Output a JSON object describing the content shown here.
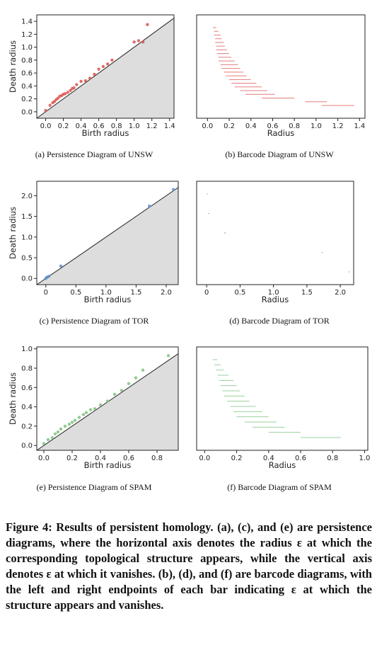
{
  "chart_data": [
    {
      "type": "scatter",
      "xlabel": "Birth radius",
      "ylabel": "Death radius",
      "xticks": [
        "0.0",
        "0.2",
        "0.4",
        "0.6",
        "0.8",
        "1.0",
        "1.2",
        "1.4"
      ],
      "yticks": [
        "0.0",
        "0.2",
        "0.4",
        "0.6",
        "0.8",
        "1.0",
        "1.2",
        "1.4"
      ],
      "xlim": [
        -0.1,
        1.45
      ],
      "ylim": [
        -0.1,
        1.5
      ],
      "color": "#d9534f",
      "caption": "(a)  Persistence Diagram of UNSW",
      "points": [
        [
          0.0,
          0.02
        ],
        [
          0.05,
          0.1
        ],
        [
          0.08,
          0.14
        ],
        [
          0.1,
          0.16
        ],
        [
          0.12,
          0.19
        ],
        [
          0.14,
          0.21
        ],
        [
          0.16,
          0.24
        ],
        [
          0.18,
          0.25
        ],
        [
          0.2,
          0.27
        ],
        [
          0.22,
          0.28
        ],
        [
          0.25,
          0.3
        ],
        [
          0.28,
          0.33
        ],
        [
          0.3,
          0.36
        ],
        [
          0.32,
          0.37
        ],
        [
          0.35,
          0.42
        ],
        [
          0.4,
          0.47
        ],
        [
          0.45,
          0.48
        ],
        [
          0.5,
          0.52
        ],
        [
          0.55,
          0.58
        ],
        [
          0.6,
          0.66
        ],
        [
          0.65,
          0.7
        ],
        [
          0.7,
          0.74
        ],
        [
          0.75,
          0.8
        ],
        [
          1.0,
          1.08
        ],
        [
          1.05,
          1.1
        ],
        [
          1.1,
          1.08
        ],
        [
          1.15,
          1.35
        ]
      ]
    },
    {
      "type": "barcode",
      "xlabel": "Radius",
      "xticks": [
        "0.0",
        "0.2",
        "0.4",
        "0.6",
        "0.8",
        "1.0",
        "1.2",
        "1.4"
      ],
      "xlim": [
        -0.1,
        1.45
      ],
      "color": "#d9534f",
      "caption": "(b)  Barcode Diagram of UNSW",
      "bars": [
        [
          0.05,
          0.08
        ],
        [
          0.06,
          0.1
        ],
        [
          0.06,
          0.12
        ],
        [
          0.07,
          0.13
        ],
        [
          0.07,
          0.15
        ],
        [
          0.08,
          0.16
        ],
        [
          0.08,
          0.18
        ],
        [
          0.09,
          0.2
        ],
        [
          0.1,
          0.22
        ],
        [
          0.1,
          0.25
        ],
        [
          0.12,
          0.28
        ],
        [
          0.13,
          0.3
        ],
        [
          0.15,
          0.33
        ],
        [
          0.17,
          0.36
        ],
        [
          0.2,
          0.4
        ],
        [
          0.22,
          0.45
        ],
        [
          0.25,
          0.5
        ],
        [
          0.3,
          0.55
        ],
        [
          0.35,
          0.62
        ],
        [
          0.5,
          0.8
        ],
        [
          0.9,
          1.1
        ],
        [
          1.05,
          1.35
        ]
      ]
    },
    {
      "type": "scatter",
      "xlabel": "Birth radius",
      "ylabel": "Death radius",
      "xticks": [
        "0",
        "0.5",
        "1.0",
        "1.5",
        "2.0"
      ],
      "yticks": [
        "0.0",
        "0.5",
        "1.0",
        "1.5",
        "2.0"
      ],
      "xlim": [
        -0.15,
        2.2
      ],
      "ylim": [
        -0.15,
        2.35
      ],
      "color": "#5b8fc9",
      "caption": "(c)  Persistence Diagram of TOR",
      "points": [
        [
          0.0,
          0.0
        ],
        [
          0.02,
          0.03
        ],
        [
          0.05,
          0.05
        ],
        [
          0.25,
          0.3
        ],
        [
          1.72,
          1.75
        ],
        [
          2.12,
          2.15
        ]
      ]
    },
    {
      "type": "barcode",
      "xlabel": "Radius",
      "xticks": [
        "0",
        "0.5",
        "1.0",
        "1.5",
        "2.0"
      ],
      "xlim": [
        -0.15,
        2.2
      ],
      "color": "#5b8fc9",
      "caption": "(d)  Barcode Diagram of TOR",
      "bars": [
        [
          0.0,
          0.02
        ],
        [
          0.02,
          0.04
        ],
        [
          0.26,
          0.29
        ],
        [
          1.72,
          1.74
        ],
        [
          2.12,
          2.14
        ]
      ]
    },
    {
      "type": "scatter",
      "xlabel": "Birth radius",
      "ylabel": "Death radius",
      "xticks": [
        "0.0",
        "0.2",
        "0.4",
        "0.6",
        "0.8"
      ],
      "yticks": [
        "0.0",
        "0.2",
        "0.4",
        "0.6",
        "0.8",
        "1.0"
      ],
      "xlim": [
        -0.05,
        0.95
      ],
      "ylim": [
        -0.05,
        1.02
      ],
      "color": "#7cc27c",
      "caption": "(e)  Persistence Diagram of SPAM",
      "points": [
        [
          0.0,
          0.02
        ],
        [
          0.03,
          0.06
        ],
        [
          0.06,
          0.08
        ],
        [
          0.08,
          0.12
        ],
        [
          0.1,
          0.14
        ],
        [
          0.12,
          0.17
        ],
        [
          0.15,
          0.2
        ],
        [
          0.18,
          0.22
        ],
        [
          0.2,
          0.24
        ],
        [
          0.22,
          0.26
        ],
        [
          0.25,
          0.29
        ],
        [
          0.28,
          0.32
        ],
        [
          0.3,
          0.34
        ],
        [
          0.33,
          0.37
        ],
        [
          0.36,
          0.38
        ],
        [
          0.4,
          0.42
        ],
        [
          0.45,
          0.46
        ],
        [
          0.5,
          0.53
        ],
        [
          0.55,
          0.57
        ],
        [
          0.6,
          0.64
        ],
        [
          0.65,
          0.7
        ],
        [
          0.7,
          0.78
        ],
        [
          0.88,
          0.93
        ]
      ]
    },
    {
      "type": "barcode",
      "xlabel": "Radius",
      "xticks": [
        "0.0",
        "0.2",
        "0.4",
        "0.6",
        "0.8",
        "1.0"
      ],
      "xlim": [
        -0.05,
        1.02
      ],
      "color": "#7cc27c",
      "caption": "(f)  Barcode Diagram of SPAM",
      "bars": [
        [
          0.05,
          0.08
        ],
        [
          0.06,
          0.1
        ],
        [
          0.07,
          0.12
        ],
        [
          0.08,
          0.15
        ],
        [
          0.09,
          0.18
        ],
        [
          0.1,
          0.2
        ],
        [
          0.11,
          0.22
        ],
        [
          0.12,
          0.25
        ],
        [
          0.14,
          0.28
        ],
        [
          0.16,
          0.32
        ],
        [
          0.18,
          0.36
        ],
        [
          0.2,
          0.4
        ],
        [
          0.25,
          0.45
        ],
        [
          0.3,
          0.5
        ],
        [
          0.4,
          0.6
        ],
        [
          0.6,
          0.85
        ]
      ]
    }
  ],
  "figure_caption": "Figure 4: Results of persistent homology. (a), (c), and (e) are persistence diagrams, where the horizontal axis denotes the radius ε at which the corresponding topological structure appears, while the vertical axis denotes ε at which it vanishes. (b), (d), and (f) are barcode diagrams, with the left and right endpoints of each bar indicating ε at which the structure appears and vanishes."
}
